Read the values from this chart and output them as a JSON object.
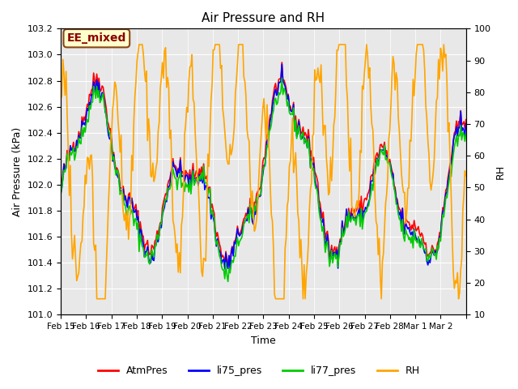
{
  "title": "Air Pressure and RH",
  "xlabel": "Time",
  "ylabel_left": "Air Pressure (kPa)",
  "ylabel_right": "RH",
  "ylim_left": [
    101.0,
    103.2
  ],
  "ylim_right": [
    10,
    100
  ],
  "yticks_left": [
    101.0,
    101.2,
    101.4,
    101.6,
    101.8,
    102.0,
    102.2,
    102.4,
    102.6,
    102.8,
    103.0,
    103.2
  ],
  "yticks_right": [
    10,
    20,
    30,
    40,
    50,
    60,
    70,
    80,
    90,
    100
  ],
  "bg_color": "#e8e8e8",
  "grid_color": "#ffffff",
  "annotation_text": "EE_mixed",
  "annotation_bg": "#ffffcc",
  "annotation_border": "#8b4513",
  "annotation_text_color": "#8b0000",
  "color_atm": "#ff0000",
  "color_li75": "#0000ff",
  "color_li77": "#00cc00",
  "color_rh": "#ffa500",
  "line_width": 1.2,
  "legend_labels": [
    "AtmPres",
    "li75_pres",
    "li77_pres",
    "RH"
  ],
  "xtick_labels": [
    "Feb 15",
    "Feb 16",
    "Feb 17",
    "Feb 18",
    "Feb 19",
    "Feb 20",
    "Feb 21",
    "Feb 22",
    "Feb 23",
    "Feb 24",
    "Feb 25",
    "Feb 26",
    "Feb 27",
    "Feb 28",
    "Mar 1",
    "Mar 2",
    ""
  ],
  "n_days": 16
}
